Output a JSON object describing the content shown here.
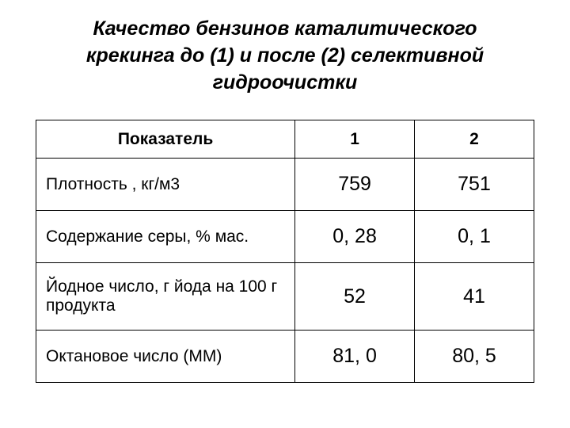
{
  "title": "Качество бензинов каталитического крекинга до (1) и после (2) селективной гидроочистки",
  "table": {
    "type": "table",
    "columns": [
      "Показатель",
      "1",
      "2"
    ],
    "column_widths": [
      "52%",
      "24%",
      "24%"
    ],
    "header_fontsize": 21,
    "param_fontsize": 21,
    "value_fontsize": 25,
    "border_color": "#000000",
    "background_color": "#ffffff",
    "text_color": "#000000",
    "rows": [
      {
        "param": "Плотность , кг/м3",
        "v1": "759",
        "v2": "751"
      },
      {
        "param": "Содержание серы, % мас.",
        "v1": "0, 28",
        "v2": "0, 1"
      },
      {
        "param": "Йодное число, г йода на 100 г продукта",
        "v1": "52",
        "v2": "41"
      },
      {
        "param": "Октановое число (ММ)",
        "v1": "81, 0",
        "v2": "80, 5"
      }
    ]
  }
}
